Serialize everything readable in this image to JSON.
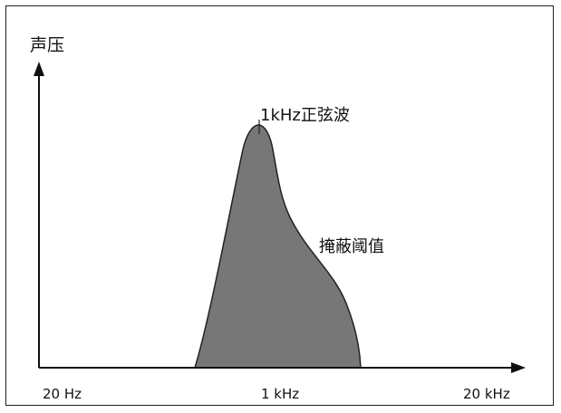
{
  "figure": {
    "y_axis_label": "声压",
    "x_ticks": [
      "20 Hz",
      "1 kHz",
      "20 kHz"
    ],
    "tone_label": "1kHz正弦波",
    "curve_label": "掩蔽阈值"
  },
  "colors": {
    "curve_fill": "#777777",
    "curve_stroke": "#222222",
    "axis": "#111111",
    "frame": "#222222"
  }
}
